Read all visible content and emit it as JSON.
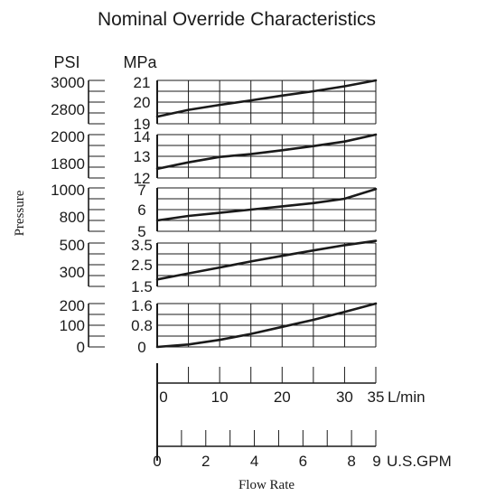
{
  "chart_data": {
    "type": "line",
    "title": "Nominal Override Characteristics",
    "ylabel": "Pressure",
    "xlabel": "Flow Rate",
    "psi_header": "PSI",
    "mpa_header": "MPa",
    "grid": true,
    "x_axes": [
      {
        "unit": "L/min",
        "range": [
          0,
          35
        ],
        "ticks": [
          0,
          10,
          20,
          30,
          35
        ],
        "tick_labels": [
          "0",
          "10",
          "20",
          "30",
          "35"
        ]
      },
      {
        "unit": "U.S.GPM",
        "range": [
          0,
          9
        ],
        "ticks": [
          0,
          2,
          4,
          6,
          8,
          9
        ],
        "tick_labels": [
          "0",
          "2",
          "4",
          "6",
          "8",
          "9"
        ]
      }
    ],
    "panels": [
      {
        "mpa_range": [
          19,
          21
        ],
        "mpa_ticks": [
          "21",
          "20",
          "19"
        ],
        "psi_ticks": [
          "3000",
          "2800"
        ],
        "x": [
          0,
          5,
          10,
          15,
          20,
          25,
          30,
          35
        ],
        "y": [
          19.33,
          19.64,
          19.87,
          20.08,
          20.3,
          20.5,
          20.73,
          21.0
        ]
      },
      {
        "mpa_range": [
          12,
          14
        ],
        "mpa_ticks": [
          "14",
          "13",
          "12"
        ],
        "psi_ticks": [
          "2000",
          "1800"
        ],
        "x": [
          0,
          5,
          10,
          15,
          20,
          25,
          30,
          35
        ],
        "y": [
          12.42,
          12.72,
          12.97,
          13.1,
          13.28,
          13.47,
          13.68,
          14.0
        ]
      },
      {
        "mpa_range": [
          5,
          7
        ],
        "mpa_ticks": [
          "7",
          "6",
          "5"
        ],
        "psi_ticks": [
          "1000",
          "800"
        ],
        "x": [
          0,
          5,
          10,
          15,
          20,
          25,
          30,
          35
        ],
        "y": [
          5.5,
          5.71,
          5.85,
          6.0,
          6.15,
          6.3,
          6.5,
          6.95
        ]
      },
      {
        "mpa_range": [
          1.5,
          3.5
        ],
        "mpa_ticks": [
          "3.5",
          "2.5",
          "1.5"
        ],
        "psi_ticks": [
          "500",
          "300"
        ],
        "x": [
          0,
          5,
          10,
          15,
          20,
          25,
          30,
          35
        ],
        "y": [
          1.82,
          2.1,
          2.37,
          2.65,
          2.91,
          3.16,
          3.4,
          3.6
        ]
      },
      {
        "mpa_range": [
          0,
          1.6
        ],
        "mpa_ticks": [
          "1.6",
          "0.8",
          "0"
        ],
        "psi_ticks": [
          "200",
          "100",
          "0"
        ],
        "x": [
          0,
          5,
          10,
          15,
          20,
          25,
          30,
          35
        ],
        "y": [
          0.0,
          0.09,
          0.26,
          0.48,
          0.74,
          1.0,
          1.29,
          1.6
        ]
      }
    ]
  }
}
